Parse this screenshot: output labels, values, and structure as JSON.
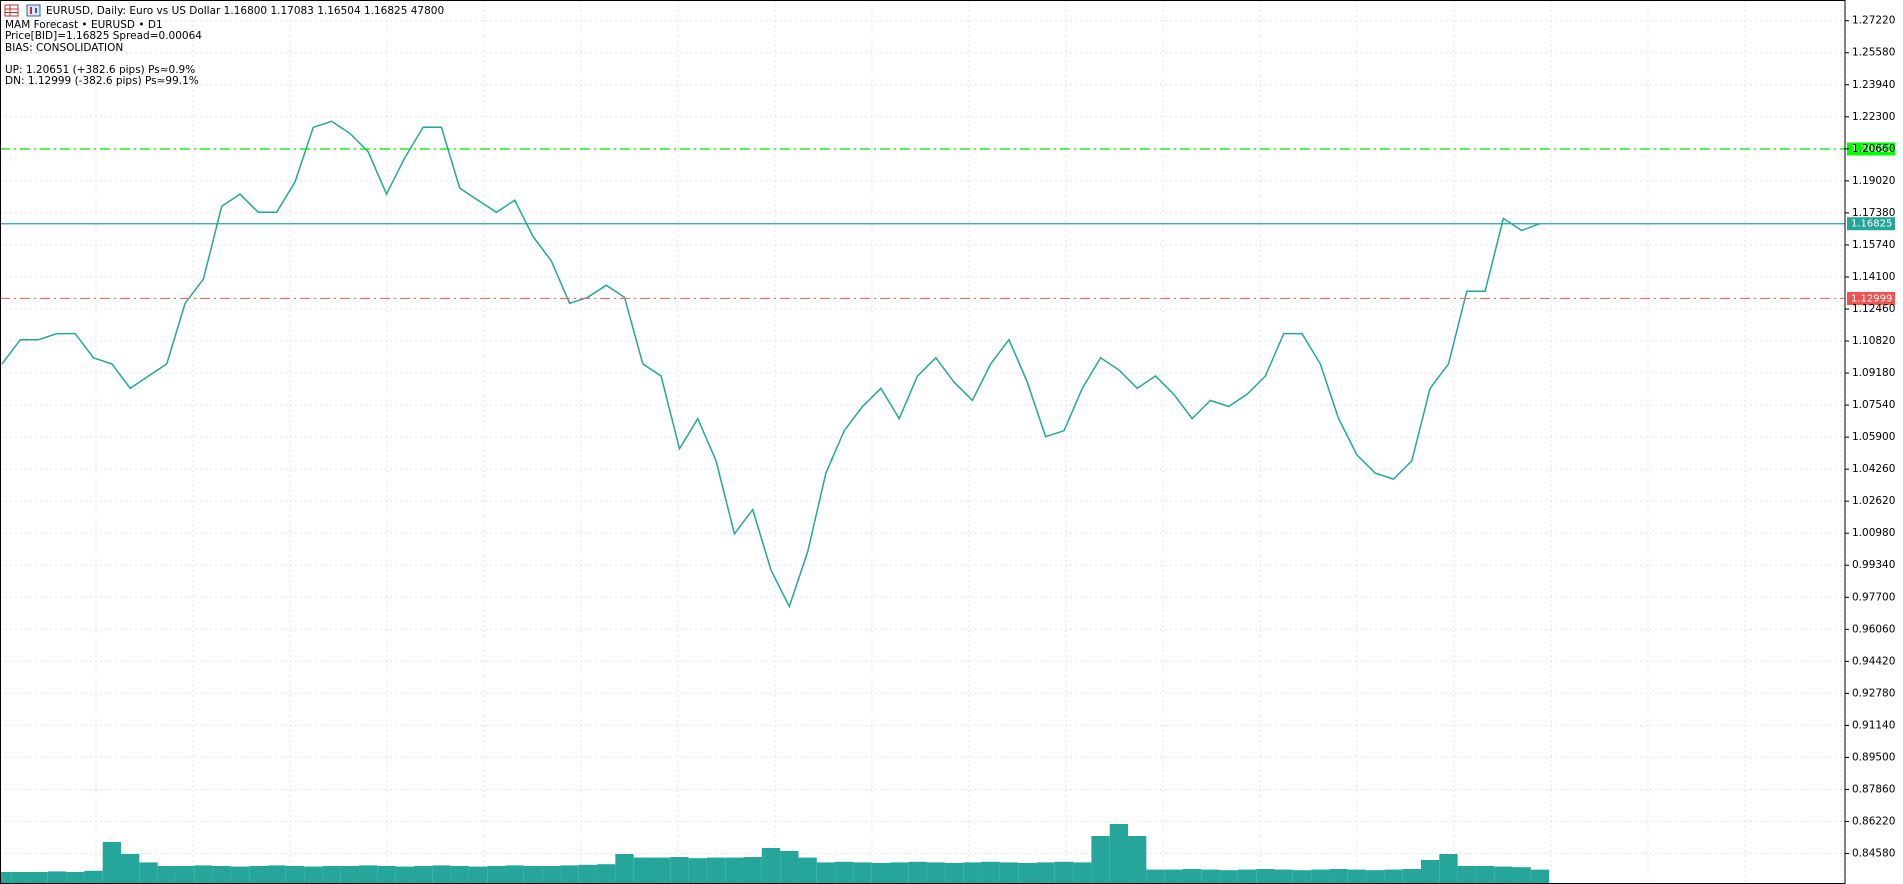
{
  "chart_data": {
    "type": "line",
    "title": "EURUSD, Daily:  Euro vs US Dollar  1.16800 1.17083 1.16504 1.16825  47800",
    "annotations": [
      "MAM Forecast • EURUSD • D1",
      "Price[BID]=1.16825   Spread=0.00064",
      "BIAS: CONSOLIDATION",
      "UP: 1.20651  (+382.6 pips)  Ps≈0.9%",
      "DN: 1.12999  (-382.6 pips)  Ps≈99.1%"
    ],
    "ylim": [
      0.8302,
      1.2828
    ],
    "yticks": [
      {
        "value": 1.2722,
        "label": "1.27220"
      },
      {
        "value": 1.2558,
        "label": "1.25580"
      },
      {
        "value": 1.2394,
        "label": "1.23940"
      },
      {
        "value": 1.223,
        "label": "1.22300"
      },
      {
        "value": 1.2066,
        "label": "1.20660"
      },
      {
        "value": 1.1902,
        "label": "1.19020"
      },
      {
        "value": 1.1738,
        "label": "1.17380"
      },
      {
        "value": 1.1574,
        "label": "1.15740"
      },
      {
        "value": 1.141,
        "label": "1.14100"
      },
      {
        "value": 1.1246,
        "label": "1.12460"
      },
      {
        "value": 1.1082,
        "label": "1.10820"
      },
      {
        "value": 1.0918,
        "label": "1.09180"
      },
      {
        "value": 1.0754,
        "label": "1.07540"
      },
      {
        "value": 1.059,
        "label": "1.05900"
      },
      {
        "value": 1.0426,
        "label": "1.04260"
      },
      {
        "value": 1.0262,
        "label": "1.02620"
      },
      {
        "value": 1.0098,
        "label": "1.00980"
      },
      {
        "value": 0.9934,
        "label": "0.99340"
      },
      {
        "value": 0.977,
        "label": "0.97700"
      },
      {
        "value": 0.9606,
        "label": "0.96060"
      },
      {
        "value": 0.9442,
        "label": "0.94420"
      },
      {
        "value": 0.9278,
        "label": "0.92780"
      },
      {
        "value": 0.9114,
        "label": "0.91140"
      },
      {
        "value": 0.895,
        "label": "0.89500"
      },
      {
        "value": 0.8786,
        "label": "0.87860"
      },
      {
        "value": 0.8622,
        "label": "0.86220"
      },
      {
        "value": 0.8458,
        "label": "0.84580"
      }
    ],
    "grid": true,
    "series": [
      {
        "color": "#26a69a",
        "values": [
          1.0965,
          1.1089,
          1.1089,
          1.112,
          1.112,
          1.0996,
          1.0965,
          1.084,
          1.0903,
          1.0965,
          1.1275,
          1.1399,
          1.1772,
          1.1834,
          1.1741,
          1.1741,
          1.1896,
          1.2176,
          1.2207,
          1.2145,
          1.2051,
          1.1834,
          1.202,
          1.2176,
          1.2176,
          1.1865,
          1.1803,
          1.1741,
          1.1803,
          1.1617,
          1.1492,
          1.1275,
          1.1306,
          1.1368,
          1.1306,
          1.0965,
          1.0903,
          1.053,
          1.0685,
          1.0468,
          1.0095,
          1.0219,
          0.9909,
          0.9723,
          1.0002,
          1.0406,
          1.0623,
          1.0747,
          1.084,
          1.0685,
          1.0903,
          1.0996,
          1.0871,
          1.0778,
          1.0965,
          1.1089,
          1.0871,
          1.0592,
          1.0623,
          1.084,
          1.0996,
          1.0934,
          1.084,
          1.0903,
          1.0809,
          1.0685,
          1.0778,
          1.0747,
          1.0809,
          1.0903,
          1.112,
          1.112,
          1.0965,
          1.0685,
          1.0499,
          1.0406,
          1.0375,
          1.0468,
          1.084,
          1.0965,
          1.1337,
          1.1337,
          1.171,
          1.1648,
          1.1683
        ]
      }
    ],
    "volume": {
      "color": "#26a69a",
      "ylim": [
        0,
        300000
      ],
      "values": [
        40000,
        40000,
        40000,
        42000,
        40000,
        44000,
        140000,
        100000,
        72000,
        60000,
        60000,
        62000,
        60000,
        58000,
        60000,
        62000,
        60000,
        58000,
        60000,
        60000,
        62000,
        60000,
        58000,
        60000,
        62000,
        60000,
        58000,
        60000,
        62000,
        60000,
        60000,
        62000,
        64000,
        66000,
        100000,
        88000,
        88000,
        90000,
        86000,
        88000,
        88000,
        90000,
        120000,
        110000,
        88000,
        72000,
        74000,
        72000,
        70000,
        72000,
        74000,
        72000,
        70000,
        72000,
        74000,
        72000,
        70000,
        72000,
        74000,
        72000,
        160000,
        200000,
        160000,
        48000,
        48000,
        50000,
        48000,
        46000,
        48000,
        50000,
        48000,
        46000,
        48000,
        50000,
        48000,
        46000,
        48000,
        50000,
        80000,
        100000,
        60000,
        60000,
        58000,
        56000,
        47800
      ]
    },
    "levels": [
      {
        "value": 1.20651,
        "color": "#00e600",
        "label_color": "#00ff00",
        "dash": "dashdot"
      },
      {
        "value": 1.16825,
        "color": "#26a69a",
        "label_color": "#26a69a",
        "dash": "solid"
      },
      {
        "value": 1.12999,
        "color": "#f26b6b",
        "label_color": "#ef5350",
        "dash": "dashdot"
      }
    ]
  }
}
